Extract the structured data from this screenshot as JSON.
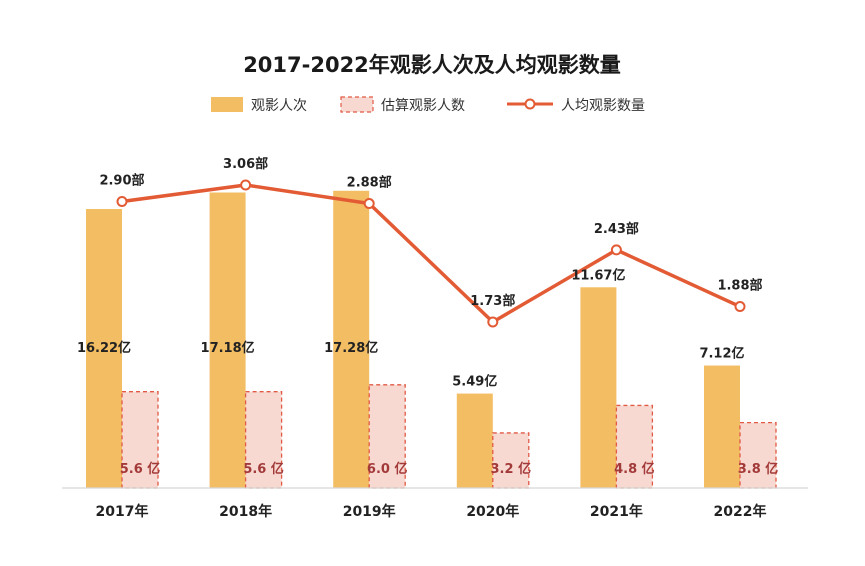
{
  "chart_data": {
    "type": "bar",
    "title": "2017-2022年观影人次及人均观影数量",
    "categories": [
      "2017年",
      "2018年",
      "2019年",
      "2020年",
      "2021年",
      "2022年"
    ],
    "series": [
      {
        "name": "观影人次",
        "kind": "bar",
        "color": "#f3be63",
        "values": [
          16.22,
          17.18,
          17.28,
          5.49,
          11.67,
          7.12
        ],
        "labels": [
          "16.22亿",
          "17.18亿",
          "17.28亿",
          "5.49亿",
          "11.67亿",
          "7.12亿"
        ]
      },
      {
        "name": "估算观影人数",
        "kind": "bar",
        "style": "dashed",
        "color": "#f8d9d2",
        "border_color": "#e05a45",
        "values": [
          5.6,
          5.6,
          6.0,
          3.2,
          4.8,
          3.8
        ],
        "labels": [
          "5.6 亿",
          "5.6 亿",
          "6.0 亿",
          "3.2 亿",
          "4.8 亿",
          "3.8 亿"
        ]
      },
      {
        "name": "人均观影数量",
        "kind": "line",
        "color": "#e35b34",
        "values": [
          2.9,
          3.06,
          2.88,
          1.73,
          2.43,
          1.88
        ],
        "labels": [
          "2.90部",
          "3.06部",
          "2.88部",
          "1.73部",
          "2.43部",
          "1.88部"
        ]
      }
    ],
    "legend_position": "top-center",
    "grid": false
  }
}
